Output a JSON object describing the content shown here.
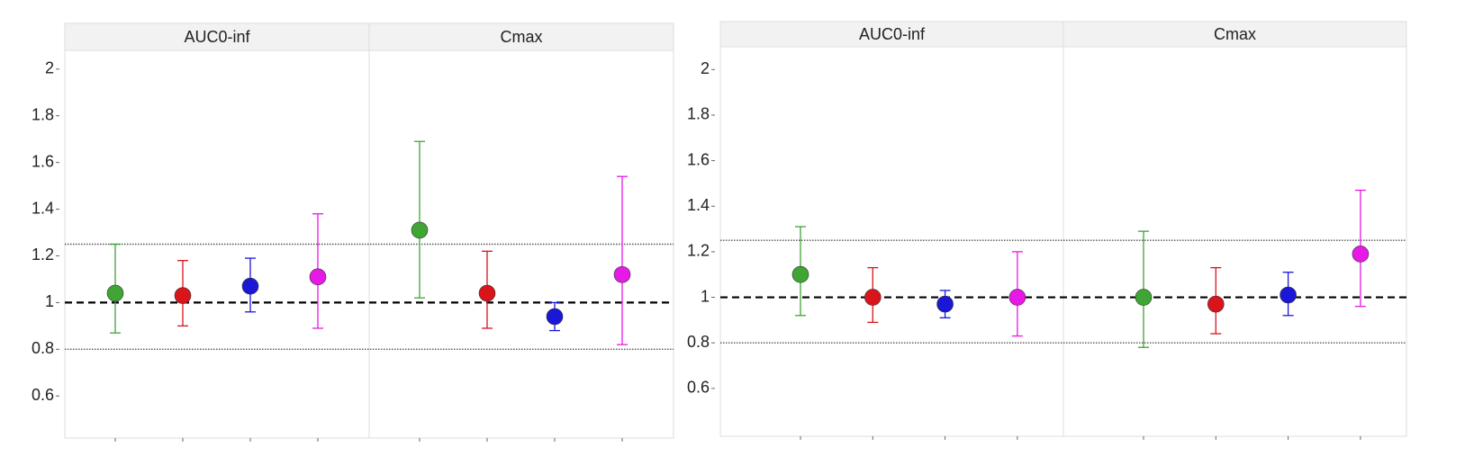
{
  "chart_data": [
    {
      "type": "errorbar",
      "ylim": [
        0.42,
        2.08
      ],
      "yticks": [
        0.6,
        0.8,
        1,
        1.2,
        1.4,
        1.6,
        1.8,
        2
      ],
      "reference_lines": [
        {
          "value": 1,
          "style": "dashed"
        },
        {
          "value": 0.8,
          "style": "dotted"
        },
        {
          "value": 1.25,
          "style": "dotted"
        }
      ],
      "facets": [
        {
          "title": "AUC0-inf",
          "colors": [
            "#3fa535",
            "#d9141b",
            "#1a17d6",
            "#e619e6"
          ],
          "values": [
            1.04,
            1.03,
            1.07,
            1.11
          ],
          "lower": [
            0.87,
            0.9,
            0.96,
            0.89
          ],
          "upper": [
            1.25,
            1.18,
            1.19,
            1.38
          ]
        },
        {
          "title": "Cmax",
          "colors": [
            "#3fa535",
            "#d9141b",
            "#1a17d6",
            "#e619e6"
          ],
          "values": [
            1.31,
            1.04,
            0.94,
            1.12
          ],
          "lower": [
            1.02,
            0.89,
            0.88,
            0.82
          ],
          "upper": [
            1.69,
            1.22,
            1.0,
            1.54
          ]
        }
      ]
    },
    {
      "type": "errorbar",
      "ylim": [
        0.39,
        2.1
      ],
      "yticks": [
        0.6,
        0.8,
        1,
        1.2,
        1.4,
        1.6,
        1.8,
        2
      ],
      "reference_lines": [
        {
          "value": 1,
          "style": "dashed"
        },
        {
          "value": 0.8,
          "style": "dotted"
        },
        {
          "value": 1.25,
          "style": "dotted"
        }
      ],
      "facets": [
        {
          "title": "AUC0-inf",
          "colors": [
            "#3fa535",
            "#d9141b",
            "#1a17d6",
            "#e619e6"
          ],
          "values": [
            1.1,
            1.0,
            0.97,
            1.0
          ],
          "lower": [
            0.92,
            0.89,
            0.91,
            0.83
          ],
          "upper": [
            1.31,
            1.13,
            1.03,
            1.2
          ]
        },
        {
          "title": "Cmax",
          "colors": [
            "#3fa535",
            "#d9141b",
            "#1a17d6",
            "#e619e6"
          ],
          "values": [
            1.0,
            0.97,
            1.01,
            1.19
          ],
          "lower": [
            0.78,
            0.84,
            0.92,
            0.96
          ],
          "upper": [
            1.29,
            1.13,
            1.11,
            1.47
          ]
        }
      ]
    }
  ]
}
